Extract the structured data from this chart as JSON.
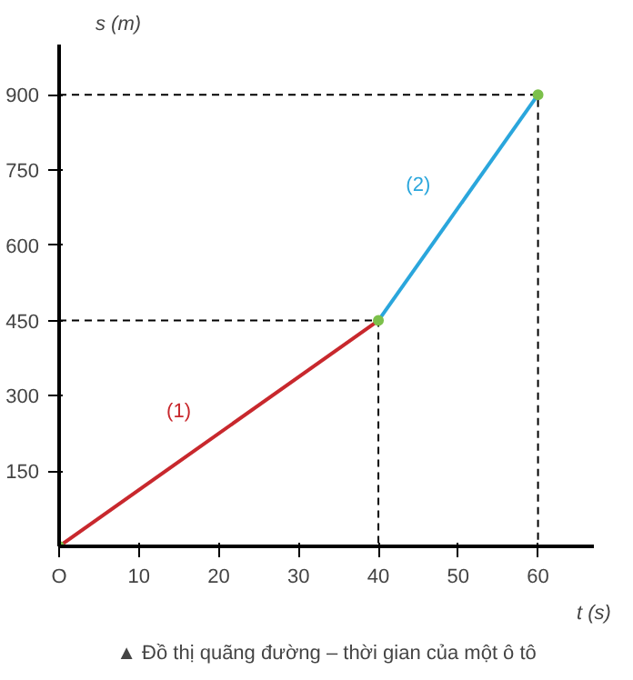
{
  "chart_data": {
    "type": "line",
    "xlabel": "t (s)",
    "ylabel": "s (m)",
    "xlim": [
      0,
      67
    ],
    "ylim": [
      0,
      1000
    ],
    "xticks": [
      {
        "value": 0,
        "label": "O"
      },
      10,
      20,
      30,
      40,
      50,
      60
    ],
    "yticks": [
      150,
      300,
      450,
      600,
      750,
      900
    ],
    "grid": false,
    "series": [
      {
        "name": "(1)",
        "color": "#c8282d",
        "x": [
          0,
          40
        ],
        "values": [
          0,
          450
        ]
      },
      {
        "name": "(2)",
        "color": "#2aa6dc",
        "x": [
          40,
          60
        ],
        "values": [
          450,
          900
        ]
      },
      {
        "color": "#000000",
        "x": [
          0,
          40,
          40
        ],
        "values": [
          450,
          450,
          0
        ],
        "line_style": "dashed"
      },
      {
        "color": "#000000",
        "x": [
          0,
          60,
          60
        ],
        "values": [
          900,
          900,
          0
        ],
        "line_style": "dashed"
      },
      {
        "type": "scatter",
        "color": "#7cc04b",
        "x": [
          0,
          40,
          60
        ],
        "values": [
          0,
          450,
          900
        ]
      }
    ],
    "annotations": [
      "▲ Đồ thị quãng đường – thời gian của một ô tô"
    ]
  }
}
